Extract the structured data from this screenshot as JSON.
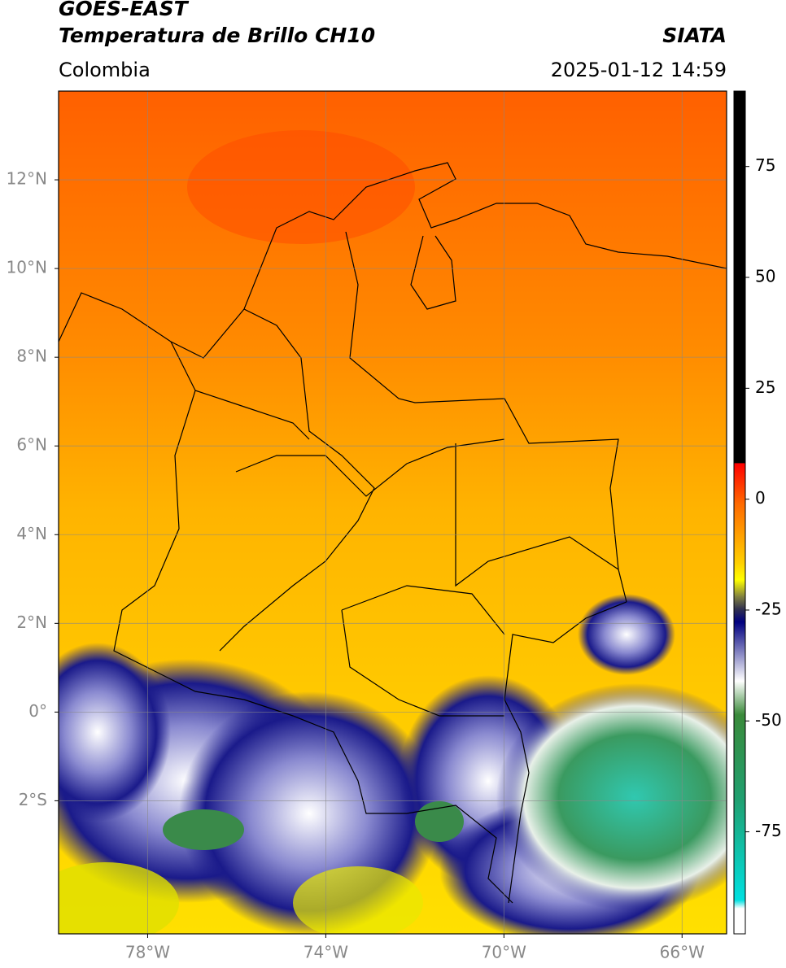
{
  "header": {
    "title": "GOES-EAST",
    "subtitle": "Temperatura de Brillo CH10",
    "region": "Colombia",
    "source": "SIATA",
    "timestamp": "2025-01-12 14:59"
  },
  "map": {
    "lonlim": [
      -80,
      -65
    ],
    "latlim": [
      -5,
      14
    ],
    "xticks": [
      {
        "value": -78,
        "label": "78°W"
      },
      {
        "value": -74,
        "label": "74°W"
      },
      {
        "value": -70,
        "label": "70°W"
      },
      {
        "value": -66,
        "label": "66°W"
      }
    ],
    "yticks": [
      {
        "value": 12,
        "label": "12°N"
      },
      {
        "value": 10,
        "label": "10°N"
      },
      {
        "value": 8,
        "label": "8°N"
      },
      {
        "value": 6,
        "label": "6°N"
      },
      {
        "value": 4,
        "label": "4°N"
      },
      {
        "value": 2,
        "label": "2°N"
      },
      {
        "value": 0,
        "label": "0°"
      },
      {
        "value": -2,
        "label": "2°S"
      }
    ],
    "grid": true
  },
  "colorbar": {
    "lim": [
      -98,
      92
    ],
    "ticks": [
      75,
      50,
      25,
      0,
      -25,
      -50,
      -75
    ]
  }
}
